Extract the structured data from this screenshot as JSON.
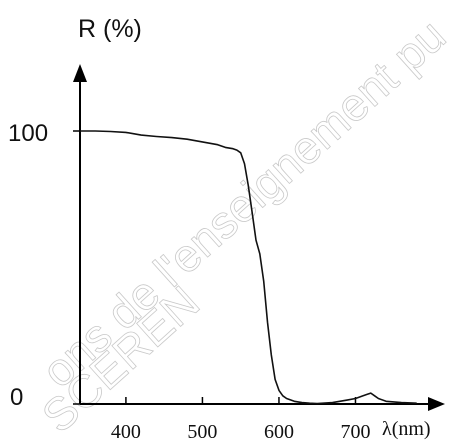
{
  "chart_data": {
    "type": "line",
    "title": "",
    "xlabel": "λ(nm)",
    "ylabel": "R (%)",
    "xlim": [
      340,
      800
    ],
    "ylim": [
      0,
      100
    ],
    "x_ticks": [
      400,
      500,
      600,
      700
    ],
    "x_tick_labels": [
      "400",
      "500",
      "600",
      "700"
    ],
    "y_tick_labels": [
      "100",
      "0"
    ],
    "y_ticks": [
      100,
      0
    ],
    "grid": false,
    "legend": "none",
    "series": [
      {
        "x": [
          340,
          360,
          380,
          400,
          420,
          440,
          460,
          480,
          500,
          520,
          530,
          540,
          545,
          550,
          555,
          560,
          565,
          570,
          575,
          580,
          585,
          590,
          595,
          600,
          605,
          610,
          620,
          630,
          640,
          650,
          670,
          690,
          700,
          710,
          715,
          720,
          725,
          730,
          740,
          760,
          780
        ],
        "y": [
          100,
          100,
          99.8,
          99.5,
          98.5,
          98,
          97.6,
          97,
          96,
          95,
          94,
          93.5,
          93,
          92,
          88,
          80,
          70,
          60,
          55,
          45,
          30,
          18,
          9,
          5,
          3,
          2,
          1,
          0.5,
          0.3,
          0.2,
          0.5,
          1.5,
          2,
          3,
          3.5,
          4,
          3,
          2,
          1,
          0.5,
          0.3
        ]
      }
    ],
    "colors": {
      "line": "#111111",
      "axis": "#000000"
    }
  },
  "watermark": {
    "lines": [
      "ons de l'enseignement pu",
      "SCEREN"
    ]
  }
}
